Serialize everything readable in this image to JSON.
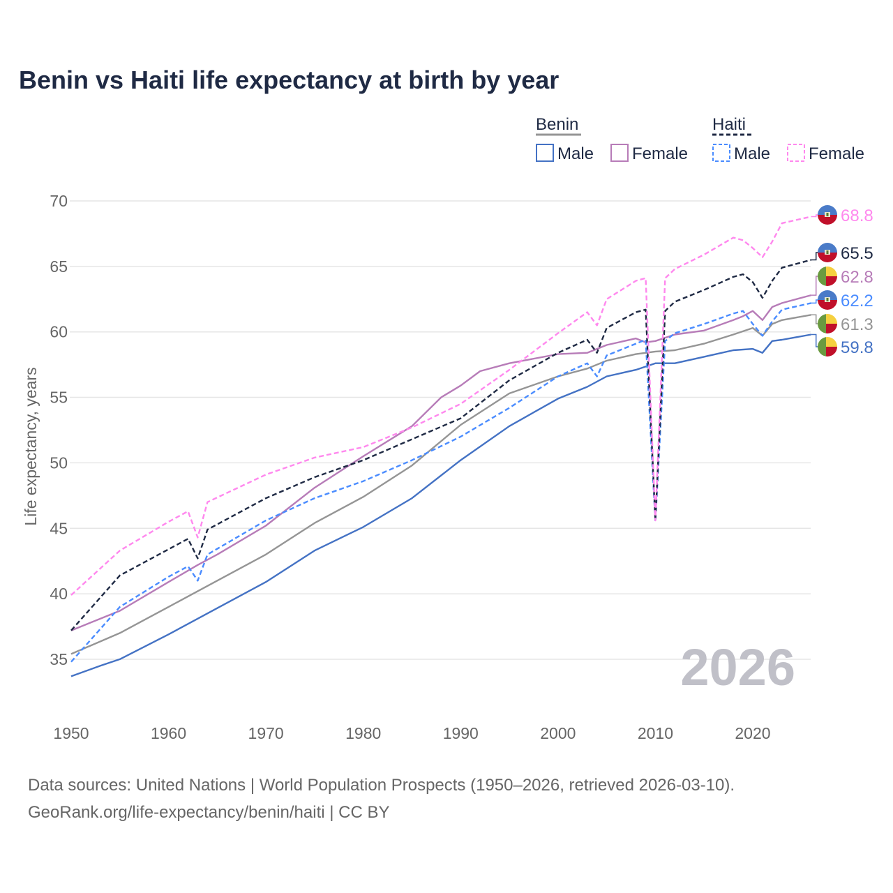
{
  "title": "Benin vs Haiti life expectancy at birth by year",
  "footer": {
    "line1": "Data sources: United Nations | World Population Prospects (1950–2026, retrieved 2026-03-10).",
    "line2": "GeoRank.org/life-expectancy/benin/haiti | CC BY"
  },
  "chart_data": {
    "type": "line",
    "title": "Benin vs Haiti life expectancy at birth by year",
    "xlabel": "",
    "ylabel": "Life expectancy, years",
    "xlim": [
      1950,
      2026
    ],
    "ylim": [
      32,
      70
    ],
    "x_ticks": [
      "1950",
      "1960",
      "1970",
      "1980",
      "1990",
      "2000",
      "2010",
      "2020"
    ],
    "y_ticks": [
      "35",
      "40",
      "45",
      "50",
      "55",
      "60",
      "65",
      "70"
    ],
    "watermark": "2026",
    "grid": true,
    "legend": {
      "placement": "top-right",
      "groups": [
        {
          "name": "Benin",
          "items": [
            "Male",
            "Female"
          ]
        },
        {
          "name": "Haiti",
          "items": [
            "Male",
            "Female"
          ]
        }
      ]
    },
    "series": [
      {
        "name": "Haiti Female",
        "country": "Haiti",
        "color": "#ff88ee",
        "dash": true,
        "end_label": "68.8",
        "x": [
          1950,
          1955,
          1960,
          1962,
          1963,
          1964,
          1970,
          1975,
          1980,
          1985,
          1990,
          1995,
          2000,
          2003,
          2004,
          2005,
          2008,
          2009,
          2010,
          2011,
          2012,
          2015,
          2018,
          2019,
          2020,
          2021,
          2022,
          2023,
          2026
        ],
        "y": [
          39.9,
          43.3,
          45.5,
          46.3,
          44.3,
          47.0,
          49.1,
          50.4,
          51.2,
          52.7,
          54.5,
          57.1,
          59.9,
          61.5,
          60.5,
          62.5,
          63.9,
          64.1,
          45.6,
          64.1,
          64.8,
          65.9,
          67.2,
          67.0,
          66.4,
          65.7,
          66.9,
          68.3,
          68.8
        ]
      },
      {
        "name": "Haiti",
        "country": "Haiti",
        "color": "#1f2a44",
        "dash": true,
        "end_label": "65.5",
        "x": [
          1950,
          1955,
          1960,
          1962,
          1963,
          1964,
          1970,
          1975,
          1980,
          1985,
          1990,
          1995,
          2000,
          2003,
          2004,
          2005,
          2008,
          2009,
          2010,
          2011,
          2012,
          2015,
          2018,
          2019,
          2020,
          2021,
          2022,
          2023,
          2026
        ],
        "y": [
          37.2,
          41.4,
          43.4,
          44.2,
          42.7,
          44.9,
          47.3,
          48.9,
          50.2,
          51.8,
          53.4,
          56.3,
          58.4,
          59.4,
          58.4,
          60.3,
          61.5,
          61.7,
          45.6,
          61.6,
          62.3,
          63.2,
          64.2,
          64.4,
          63.8,
          62.6,
          63.9,
          64.9,
          65.5
        ]
      },
      {
        "name": "Benin Female",
        "country": "Benin",
        "color": "#b77cb8",
        "dash": false,
        "end_label": "62.8",
        "x": [
          1950,
          1955,
          1960,
          1963,
          1965,
          1970,
          1975,
          1980,
          1985,
          1988,
          1990,
          1992,
          1995,
          2000,
          2003,
          2005,
          2008,
          2009,
          2010,
          2012,
          2015,
          2018,
          2019,
          2020,
          2021,
          2022,
          2023,
          2026
        ],
        "y": [
          37.2,
          38.7,
          40.9,
          42.2,
          43.0,
          45.2,
          48.1,
          50.5,
          52.8,
          55.0,
          55.9,
          57.0,
          57.6,
          58.3,
          58.4,
          59.0,
          59.5,
          59.2,
          59.3,
          59.8,
          60.1,
          60.9,
          61.2,
          61.6,
          60.9,
          61.9,
          62.2,
          62.8
        ]
      },
      {
        "name": "Haiti Male",
        "country": "Haiti",
        "color": "#4a8cff",
        "dash": true,
        "end_label": "62.2",
        "x": [
          1950,
          1955,
          1960,
          1962,
          1963,
          1964,
          1970,
          1975,
          1980,
          1985,
          1990,
          1995,
          2000,
          2003,
          2004,
          2005,
          2008,
          2009,
          2010,
          2011,
          2012,
          2015,
          2018,
          2019,
          2020,
          2021,
          2022,
          2023,
          2026
        ],
        "y": [
          34.8,
          39.0,
          41.3,
          42.1,
          41.0,
          43.0,
          45.6,
          47.3,
          48.6,
          50.2,
          52.0,
          54.2,
          56.6,
          57.6,
          56.6,
          58.2,
          59.1,
          59.4,
          45.5,
          59.3,
          59.9,
          60.6,
          61.4,
          61.6,
          60.6,
          59.7,
          60.8,
          61.7,
          62.2
        ]
      },
      {
        "name": "Benin",
        "country": "Benin",
        "color": "#959595",
        "dash": false,
        "end_label": "61.3",
        "x": [
          1950,
          1955,
          1960,
          1965,
          1970,
          1975,
          1980,
          1985,
          1990,
          1995,
          2000,
          2003,
          2005,
          2008,
          2010,
          2012,
          2015,
          2018,
          2020,
          2021,
          2022,
          2023,
          2026
        ],
        "y": [
          35.4,
          37.0,
          39.0,
          41.0,
          43.0,
          45.4,
          47.4,
          49.8,
          52.9,
          55.3,
          56.6,
          57.2,
          57.8,
          58.3,
          58.5,
          58.6,
          59.1,
          59.8,
          60.3,
          59.7,
          60.6,
          60.9,
          61.3
        ]
      },
      {
        "name": "Benin Male",
        "country": "Benin",
        "color": "#4472c4",
        "dash": false,
        "end_label": "59.8",
        "x": [
          1950,
          1953,
          1955,
          1960,
          1965,
          1970,
          1975,
          1980,
          1985,
          1990,
          1995,
          2000,
          2003,
          2005,
          2008,
          2010,
          2012,
          2015,
          2018,
          2020,
          2021,
          2022,
          2023,
          2026
        ],
        "y": [
          33.7,
          34.5,
          35.0,
          36.9,
          38.9,
          40.9,
          43.3,
          45.1,
          47.3,
          50.2,
          52.8,
          54.9,
          55.8,
          56.6,
          57.1,
          57.6,
          57.6,
          58.1,
          58.6,
          58.7,
          58.4,
          59.3,
          59.4,
          59.8
        ]
      }
    ]
  }
}
